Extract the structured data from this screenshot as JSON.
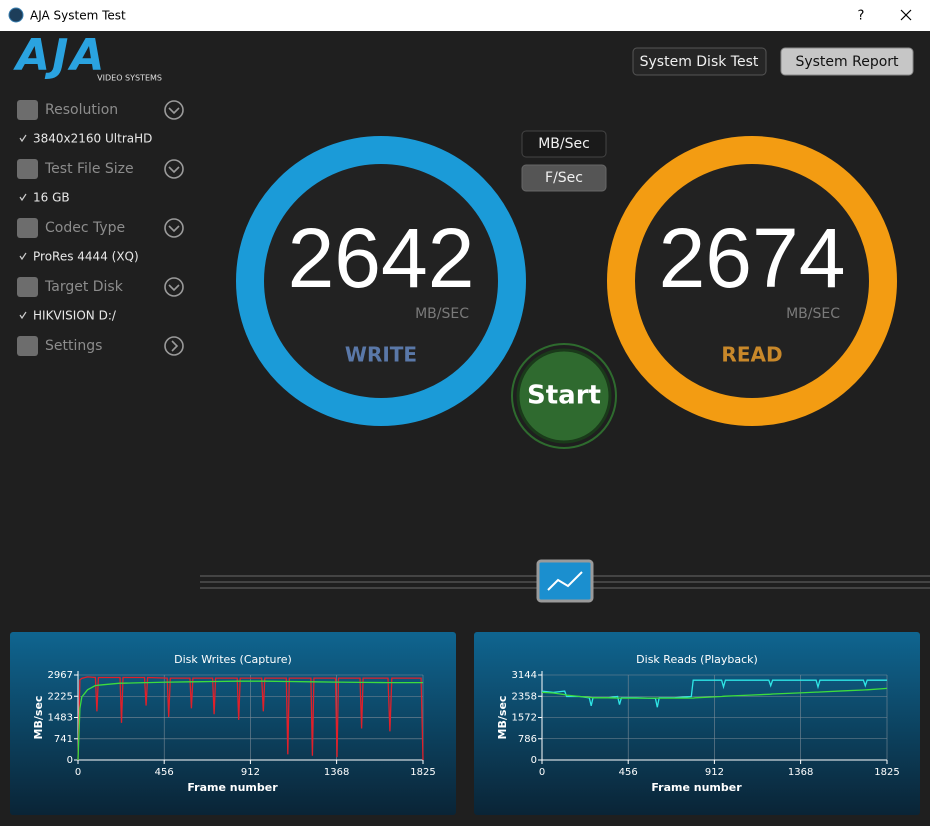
{
  "window": {
    "title": "AJA System Test",
    "help": "?"
  },
  "logo": {
    "brand": "AJA",
    "tagline": "VIDEO SYSTEMS"
  },
  "toolbar": {
    "disk_test": "System Disk Test",
    "report": "System Report"
  },
  "sidebar": [
    {
      "label": "Resolution",
      "value": "3840x2160 UltraHD"
    },
    {
      "label": "Test File Size",
      "value": "16 GB"
    },
    {
      "label": "Codec Type",
      "value": "ProRes 4444 (XQ)"
    },
    {
      "label": "Target Disk",
      "value": "HIKVISION D:/"
    },
    {
      "label": "Settings"
    }
  ],
  "units": {
    "mb": "MB/Sec",
    "fps": "F/Sec"
  },
  "gauges": [
    {
      "value": 2642,
      "unit": "MB/SEC",
      "label": "WRITE",
      "color": "#1b9bd8",
      "label_color": "#5a78a8"
    },
    {
      "value": 2674,
      "unit": "MB/SEC",
      "label": "READ",
      "color": "#f39c12",
      "label_color": "#c8882a"
    }
  ],
  "start": "Start",
  "chart_data": [
    {
      "type": "line",
      "title": "Disk Writes (Capture)",
      "x_label": "Frame number",
      "y_label": "MB/sec",
      "x": [
        0,
        10,
        20,
        50,
        92,
        100,
        108,
        222,
        230,
        238,
        352,
        360,
        368,
        472,
        480,
        488,
        592,
        600,
        608,
        712,
        720,
        728,
        842,
        850,
        858,
        972,
        980,
        988,
        1102,
        1110,
        1118,
        1232,
        1240,
        1248,
        1362,
        1370,
        1378,
        1492,
        1500,
        1508,
        1640,
        1650,
        1660,
        1815,
        1825
      ],
      "series": [
        {
          "color": "#e0202a",
          "values": [
            0,
            2800,
            2850,
            2900,
            2880,
            1700,
            2880,
            2880,
            1300,
            2880,
            2880,
            1900,
            2880,
            2860,
            1500,
            2860,
            2860,
            1800,
            2860,
            2860,
            1600,
            2860,
            2860,
            1400,
            2860,
            2860,
            1700,
            2860,
            2860,
            200,
            2860,
            2860,
            150,
            2860,
            2860,
            100,
            2860,
            2860,
            1100,
            2860,
            2860,
            1000,
            2860,
            2860,
            0
          ]
        },
        {
          "color": "#3ddc3d",
          "values": [
            0,
            1800,
            2200,
            2450,
            2600,
            2600,
            2610,
            2680,
            2680,
            2680,
            2700,
            2700,
            2700,
            2720,
            2720,
            2720,
            2730,
            2730,
            2730,
            2740,
            2740,
            2740,
            2750,
            2750,
            2750,
            2750,
            2750,
            2750,
            2740,
            2740,
            2740,
            2730,
            2730,
            2730,
            2720,
            2720,
            2720,
            2710,
            2710,
            2710,
            2700,
            2700,
            2700,
            2700,
            2700
          ]
        }
      ],
      "xlim": [
        0,
        1825
      ],
      "xticks": [
        0,
        456,
        912,
        1368,
        1825
      ],
      "ylim": [
        0,
        2967
      ],
      "yticks": [
        0,
        741,
        1483,
        2225,
        2967
      ],
      "grid": true
    },
    {
      "type": "line",
      "title": "Disk Reads (Playback)",
      "x_label": "Frame number",
      "y_label": "MB/sec",
      "x": [
        0,
        60,
        120,
        130,
        200,
        250,
        260,
        270,
        350,
        400,
        410,
        420,
        500,
        600,
        610,
        620,
        700,
        790,
        800,
        810,
        900,
        950,
        960,
        970,
        1100,
        1200,
        1210,
        1220,
        1350,
        1450,
        1460,
        1470,
        1600,
        1700,
        1710,
        1720,
        1825
      ],
      "series": [
        {
          "color": "#2fe6e6",
          "values": [
            2550,
            2500,
            2550,
            2350,
            2350,
            2300,
            2000,
            2300,
            2300,
            2350,
            2050,
            2300,
            2300,
            2280,
            1950,
            2300,
            2300,
            2350,
            2950,
            2950,
            2950,
            2950,
            2700,
            2950,
            2950,
            2950,
            2750,
            2950,
            2950,
            2950,
            2700,
            2950,
            2950,
            2950,
            2750,
            2950,
            2950
          ]
        },
        {
          "color": "#3ddc3d",
          "values": [
            2500,
            2480,
            2420,
            2400,
            2350,
            2320,
            2310,
            2300,
            2300,
            2290,
            2290,
            2290,
            2290,
            2290,
            2290,
            2290,
            2290,
            2290,
            2290,
            2300,
            2330,
            2350,
            2355,
            2360,
            2400,
            2430,
            2435,
            2440,
            2480,
            2510,
            2512,
            2515,
            2560,
            2590,
            2592,
            2595,
            2650
          ]
        }
      ],
      "xlim": [
        0,
        1825
      ],
      "xticks": [
        0,
        456,
        912,
        1368,
        1825
      ],
      "ylim": [
        0,
        3144
      ],
      "yticks": [
        0,
        786,
        1572,
        2358,
        3144
      ],
      "grid": true
    }
  ]
}
